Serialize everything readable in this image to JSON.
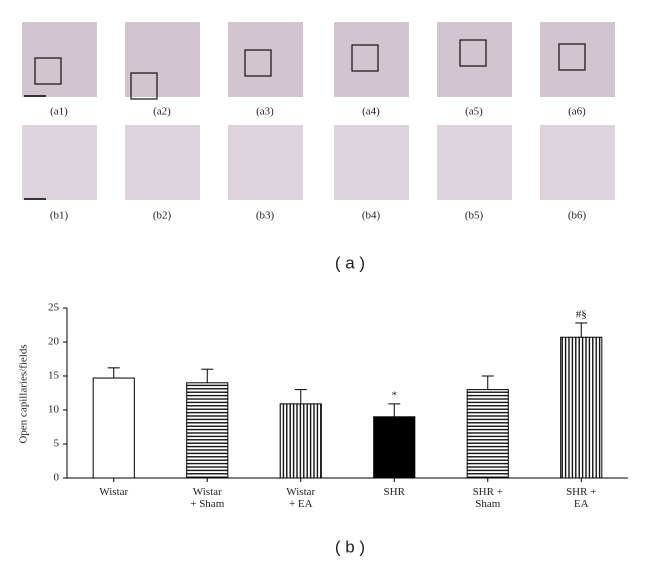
{
  "micrographs": {
    "row_a": [
      "(a1)",
      "(a2)",
      "(a3)",
      "(a4)",
      "(a5)",
      "(a6)"
    ],
    "row_b": [
      "(b1)",
      "(b2)",
      "(b3)",
      "(b4)",
      "(b5)",
      "(b6)"
    ]
  },
  "panel_labels": [
    "( a )",
    "( b )"
  ],
  "chart_data": {
    "type": "bar",
    "y_label": "Open capillaries/fields",
    "categories": [
      "Wistar",
      "Wistar\n+ Sham",
      "Wistar\n+ EA",
      "SHR",
      "SHR +\nSham",
      "SHR +\nEA"
    ],
    "values": [
      14.7,
      14.0,
      10.9,
      9.0,
      13.0,
      20.7
    ],
    "errors": [
      1.5,
      2.0,
      2.1,
      1.9,
      2.0,
      2.1
    ],
    "patterns": [
      "none",
      "horizontal",
      "vertical",
      "solid",
      "horizontal",
      "vertical"
    ],
    "annotations": [
      null,
      null,
      null,
      "*",
      null,
      "#§"
    ],
    "color": "#000000",
    "ylim": [
      0,
      25
    ],
    "yticks": [
      0,
      5,
      10,
      15,
      20,
      25
    ]
  }
}
